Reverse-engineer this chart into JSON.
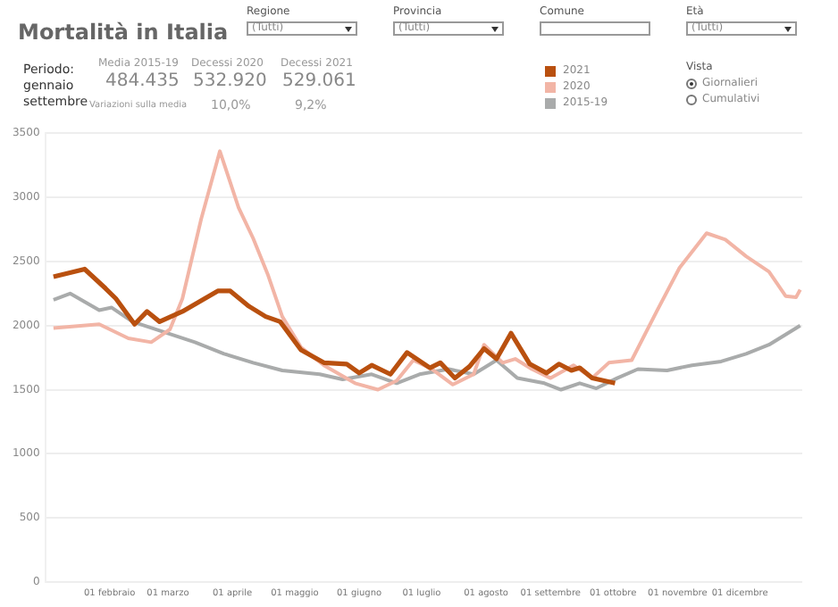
{
  "chart_data": {
    "type": "line",
    "title": "Mortalità in Italia",
    "annotations": [
      "Regione",
      "(Tutti)",
      "Provincia",
      "(Tutti)",
      "Comune",
      "Età",
      "(Tutti)",
      "Periodo:",
      "gennaio",
      "settembre",
      "Media 2015-19",
      "484.435",
      "Decessi 2020",
      "532.920",
      "Decessi 2021",
      "529.061",
      "Variazioni sulla media",
      "10,0%",
      "9,2%",
      "Vista",
      "Giornalieri",
      "Cumulativi"
    ],
    "xlim": [
      "--01-01",
      "--12-31"
    ],
    "xticks": [
      {
        "value": "--02-01",
        "label": "01 febbraio"
      },
      {
        "value": "--03-01",
        "label": "01 marzo"
      },
      {
        "value": "--04-01",
        "label": "01 aprile"
      },
      {
        "value": "--05-01",
        "label": "01 maggio"
      },
      {
        "value": "--06-01",
        "label": "01 giugno"
      },
      {
        "value": "--07-01",
        "label": "01 luglio"
      },
      {
        "value": "--08-01",
        "label": "01 agosto"
      },
      {
        "value": "--09-01",
        "label": "01 settembre"
      },
      {
        "value": "--10-01",
        "label": "01 ottobre"
      },
      {
        "value": "--11-01",
        "label": "01 novembre"
      },
      {
        "value": "--12-01",
        "label": "01 dicembre"
      }
    ],
    "ylim": [
      0,
      3500
    ],
    "yticks": [
      0,
      500,
      1000,
      1500,
      2000,
      2500,
      3000,
      3500
    ],
    "grid": "y",
    "legend": "top right",
    "marker": "none",
    "line_style": "solid",
    "series": [
      {
        "name": "2021",
        "color": "#b9500f",
        "x": [
          "--01-05",
          "--01-20",
          "--01-30",
          "--02-04",
          "--02-13",
          "--02-19",
          "--02-25",
          "--03-08",
          "--03-25",
          "--03-31",
          "--04-09",
          "--04-17",
          "--04-24",
          "--05-04",
          "--05-15",
          "--05-26",
          "--06-01",
          "--06-07",
          "--06-16",
          "--06-24",
          "--07-05",
          "--07-10",
          "--07-17",
          "--07-24",
          "--07-31",
          "--08-06",
          "--08-13",
          "--08-22",
          "--08-30",
          "--09-05",
          "--09-11",
          "--09-15",
          "--09-21",
          "--10-02"
        ],
        "values": [
          2380,
          2440,
          2290,
          2210,
          2010,
          2110,
          2030,
          2110,
          2270,
          2270,
          2150,
          2070,
          2030,
          1810,
          1710,
          1700,
          1630,
          1690,
          1620,
          1790,
          1670,
          1710,
          1590,
          1680,
          1820,
          1740,
          1940,
          1700,
          1630,
          1700,
          1650,
          1670,
          1590,
          1550
        ]
      },
      {
        "name": "2020",
        "color": "#f2b5a6",
        "x": [
          "--01-05",
          "--01-27",
          "--02-10",
          "--02-21",
          "--03-02",
          "--03-08",
          "--03-17",
          "--03-26",
          "--04-04",
          "--04-11",
          "--04-18",
          "--04-25",
          "--05-04",
          "--05-15",
          "--05-30",
          "--06-10",
          "--06-19",
          "--06-27",
          "--07-06",
          "--07-16",
          "--07-26",
          "--07-31",
          "--08-09",
          "--08-15",
          "--08-23",
          "--09-01",
          "--09-12",
          "--09-21",
          "--09-29",
          "--10-10",
          "--10-22",
          "--11-02",
          "--11-15",
          "--11-24",
          "--12-04",
          "--12-15",
          "--12-23",
          "--12-28",
          "--12-30"
        ],
        "values": [
          1980,
          2010,
          1900,
          1870,
          1970,
          2210,
          2830,
          3360,
          2920,
          2680,
          2400,
          2070,
          1830,
          1690,
          1550,
          1500,
          1570,
          1730,
          1660,
          1540,
          1620,
          1850,
          1710,
          1740,
          1660,
          1590,
          1690,
          1590,
          1710,
          1730,
          2110,
          2450,
          2720,
          2670,
          2540,
          2420,
          2230,
          2220,
          2280
        ]
      },
      {
        "name": "2015-19",
        "color": "#a9abab",
        "x": [
          "--01-05",
          "--01-13",
          "--01-27",
          "--02-02",
          "--02-12",
          "--02-27",
          "--03-14",
          "--03-28",
          "--04-11",
          "--04-25",
          "--05-13",
          "--05-24",
          "--06-07",
          "--06-19",
          "--06-30",
          "--07-14",
          "--07-26",
          "--08-06",
          "--08-16",
          "--08-29",
          "--09-06",
          "--09-15",
          "--09-23",
          "--10-03",
          "--10-13",
          "--10-27",
          "--11-08",
          "--11-22",
          "--12-04",
          "--12-15",
          "--12-30"
        ],
        "values": [
          2200,
          2250,
          2120,
          2140,
          2030,
          1950,
          1870,
          1780,
          1710,
          1650,
          1620,
          1580,
          1620,
          1550,
          1620,
          1660,
          1620,
          1730,
          1590,
          1550,
          1500,
          1550,
          1510,
          1590,
          1660,
          1650,
          1690,
          1720,
          1780,
          1850,
          2000
        ]
      }
    ]
  }
}
